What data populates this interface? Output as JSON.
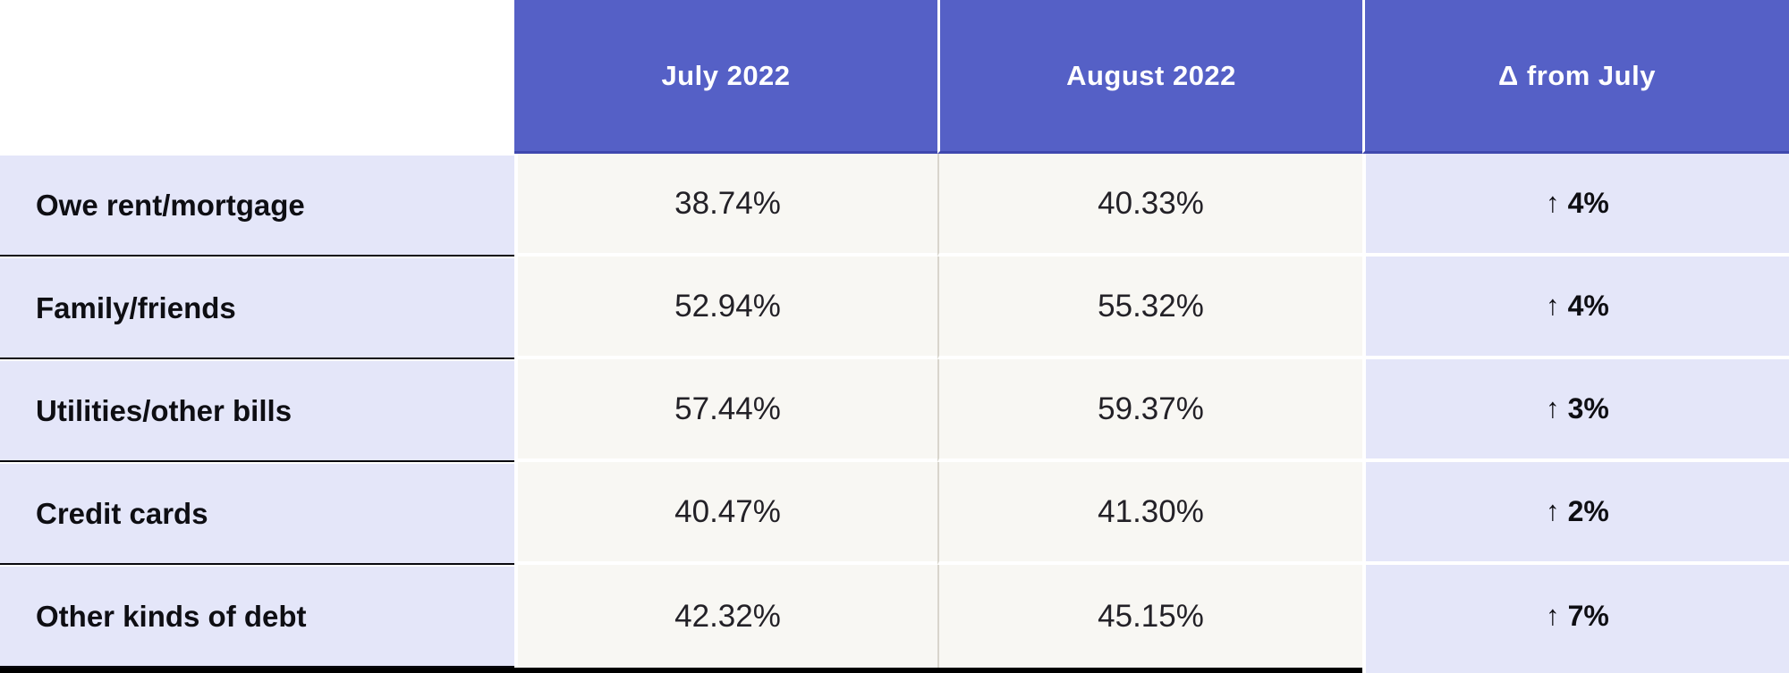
{
  "colors": {
    "header_bg": "#5560c6",
    "header_text": "#ffffff",
    "header_underline": "#3f48ae",
    "label_column_bg": "#e4e6f9",
    "delta_column_bg": "#e4e6f9",
    "data_cell_bg": "#f8f7f3",
    "row_separator_dark": "#08080e",
    "bottom_border": "#000000"
  },
  "header": {
    "columns": [
      {
        "label": "July 2022"
      },
      {
        "label": "August 2022"
      },
      {
        "label": "Δ from July"
      }
    ]
  },
  "rows": [
    {
      "label": "Owe rent/mortgage",
      "july": "38.74%",
      "august": "40.33%",
      "delta_arrow": "↑",
      "delta_value": "4%"
    },
    {
      "label": "Family/friends",
      "july": "52.94%",
      "august": "55.32%",
      "delta_arrow": "↑",
      "delta_value": "4%"
    },
    {
      "label": "Utilities/other bills",
      "july": "57.44%",
      "august": "59.37%",
      "delta_arrow": "↑",
      "delta_value": "3%"
    },
    {
      "label": "Credit cards",
      "july": "40.47%",
      "august": "41.30%",
      "delta_arrow": "↑",
      "delta_value": "2%"
    },
    {
      "label": "Other kinds of debt",
      "july": "42.32%",
      "august": "45.15%",
      "delta_arrow": "↑",
      "delta_value": "7%"
    }
  ],
  "chart_data": {
    "type": "table",
    "title": "",
    "categories": [
      "Owe rent/mortgage",
      "Family/friends",
      "Utilities/other bills",
      "Credit cards",
      "Other kinds of debt"
    ],
    "series": [
      {
        "name": "July 2022",
        "unit": "%",
        "values": [
          38.74,
          52.94,
          57.44,
          40.47,
          42.32
        ]
      },
      {
        "name": "August 2022",
        "unit": "%",
        "values": [
          40.33,
          55.32,
          59.37,
          41.3,
          45.15
        ]
      },
      {
        "name": "Δ from July",
        "values": [
          "↑ 4%",
          "↑ 4%",
          "↑ 3%",
          "↑ 2%",
          "↑ 7%"
        ]
      }
    ],
    "layout": {
      "grid": false,
      "legend": "none"
    }
  }
}
